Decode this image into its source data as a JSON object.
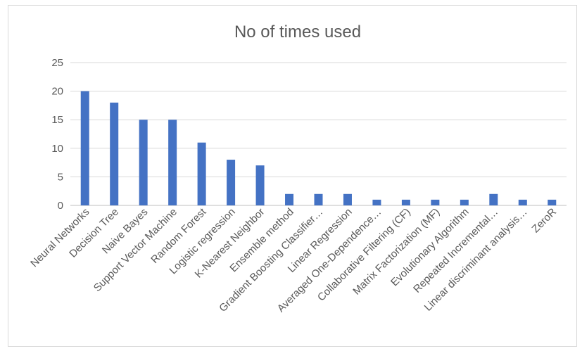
{
  "chart_data": {
    "type": "bar",
    "title": "No of times used",
    "xlabel": "",
    "ylabel": "",
    "ylim": [
      0,
      25
    ],
    "yticks": [
      0,
      5,
      10,
      15,
      20,
      25
    ],
    "grid": true,
    "legend": "none",
    "bar_color": "#4472c4",
    "categories": [
      "Neural Networks",
      "Decision Tree",
      "Naive Bayes",
      "Support Vector Machine",
      "Random Forest",
      "Logistic regression",
      "K-Nearest Neighbor",
      "Ensemble method",
      "Gradient Boosting Classifier…",
      "Linear Regression",
      "Averaged One-Dependence…",
      "Collaborative Filtering (CF)",
      "Matrix Factorization (MF)",
      "Evolutionary Algorithm",
      "Repeated Incremental…",
      "Linear discriminant analysis…",
      "ZeroR"
    ],
    "values": [
      20,
      18,
      15,
      15,
      11,
      8,
      7,
      2,
      2,
      2,
      1,
      1,
      1,
      1,
      2,
      1,
      1
    ]
  }
}
